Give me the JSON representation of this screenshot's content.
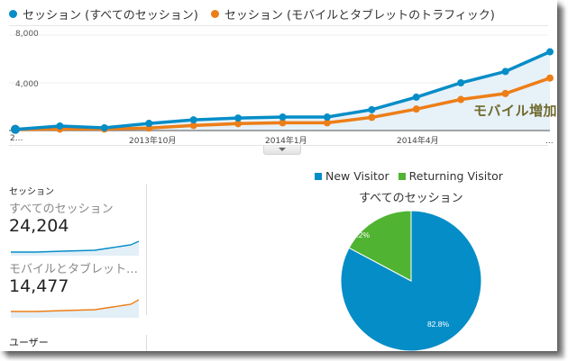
{
  "top_legend": [
    {
      "label": "セッション (すべてのセッション)",
      "color": "#058dc7"
    },
    {
      "label": "セッション (モバイルとタブレットのトラフィック)",
      "color": "#ed7e17"
    }
  ],
  "annotation": "モバイル増加",
  "left_panel": {
    "metric_title": "セッション",
    "segments": [
      {
        "label": "すべてのセッション",
        "value": "24,204",
        "color": "#058dc7"
      },
      {
        "label": "モバイルとタブレット…",
        "value": "14,477",
        "color": "#ed7e17"
      }
    ],
    "next_metric_title": "ユーザー"
  },
  "pie": {
    "legend": [
      {
        "label": "New Visitor",
        "color": "#058dc7"
      },
      {
        "label": "Returning Visitor",
        "color": "#50b432"
      }
    ],
    "title": "すべてのセッション",
    "slices": [
      {
        "label": "82.8%",
        "value": 82.8,
        "color": "#058dc7"
      },
      {
        "label": "17.2%",
        "value": 17.2,
        "color": "#50b432"
      }
    ]
  },
  "chart_data": [
    {
      "type": "line",
      "title": "",
      "xlabel": "",
      "ylabel": "セッション",
      "ylim": [
        0,
        8000
      ],
      "yticks": [
        "8,000",
        "4,000"
      ],
      "x_tick_labels": [
        "2...",
        "2013年10月",
        "2014年1月",
        "2014年4月",
        "..."
      ],
      "x": [
        1,
        2,
        3,
        4,
        5,
        6,
        7,
        8,
        9,
        10,
        11,
        12,
        13
      ],
      "series": [
        {
          "name": "セッション (すべてのセッション)",
          "color": "#058dc7",
          "values": [
            100,
            380,
            230,
            600,
            900,
            1050,
            1130,
            1130,
            1750,
            2800,
            4000,
            4950,
            6600
          ]
        },
        {
          "name": "セッション (モバイルとタブレットのトラフィック)",
          "color": "#ed7e17",
          "values": [
            100,
            120,
            130,
            200,
            420,
            580,
            650,
            650,
            1100,
            1800,
            2600,
            3100,
            4400
          ]
        }
      ],
      "grid": true,
      "legend_position": "top",
      "annotations": [
        "モバイル増加"
      ]
    },
    {
      "type": "pie",
      "title": "すべてのセッション",
      "categories": [
        "New Visitor",
        "Returning Visitor"
      ],
      "values": [
        82.8,
        17.2
      ],
      "legend_position": "top"
    }
  ]
}
